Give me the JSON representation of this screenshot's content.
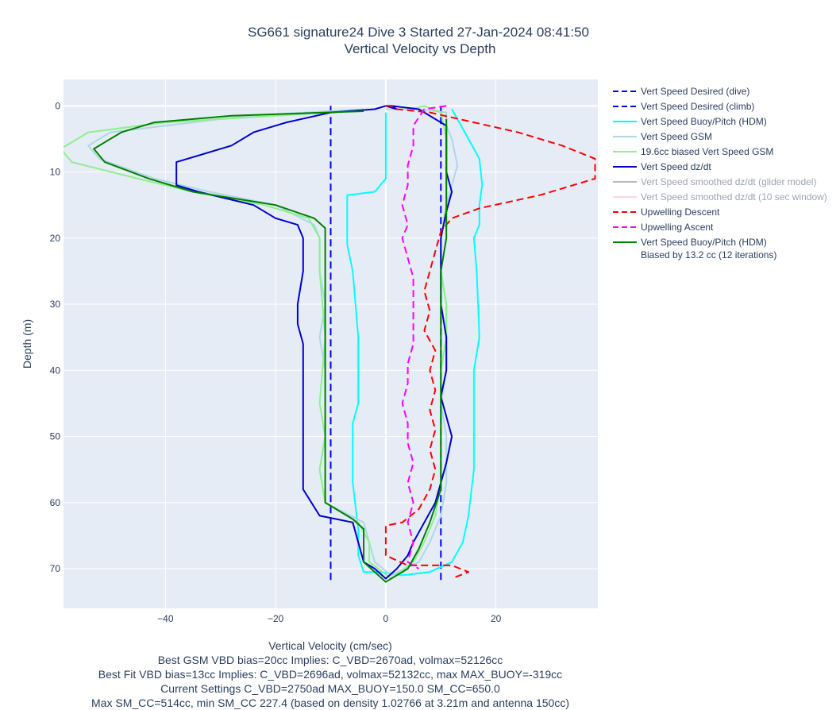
{
  "chart_data": {
    "type": "line",
    "title": "SG661 signature24 Dive 3 Started 27-Jan-2024 08:41:50",
    "subtitle": "Vertical Velocity vs Depth",
    "xlabel": "Vertical Velocity (cm/sec)",
    "ylabel": "Depth (m)",
    "xlim": [
      -58.5,
      38.5
    ],
    "ylim": [
      76,
      -4
    ],
    "y_reversed": true,
    "grid": true,
    "legend_position": "right",
    "x_ticks": [
      {
        "value": -40,
        "label": "−40"
      },
      {
        "value": -20,
        "label": "−20"
      },
      {
        "value": 0,
        "label": "0"
      },
      {
        "value": 20,
        "label": "20"
      }
    ],
    "y_ticks": [
      {
        "value": 0,
        "label": "0"
      },
      {
        "value": 10,
        "label": "10"
      },
      {
        "value": 20,
        "label": "20"
      },
      {
        "value": 30,
        "label": "30"
      },
      {
        "value": 40,
        "label": "40"
      },
      {
        "value": 50,
        "label": "50"
      },
      {
        "value": 60,
        "label": "60"
      },
      {
        "value": 70,
        "label": "70"
      }
    ],
    "series": [
      {
        "name": "Vert Speed Desired (dive)",
        "color": "#0000ff",
        "dash": "dash",
        "visible": true,
        "points": [
          [
            -10,
            0
          ],
          [
            -10,
            72
          ]
        ]
      },
      {
        "name": "Vert Speed Desired (climb)",
        "color": "#0000ff",
        "dash": "dash",
        "visible": true,
        "points": [
          [
            10,
            0
          ],
          [
            10,
            72
          ]
        ]
      },
      {
        "name": "Vert Speed Buoy/Pitch (HDM)",
        "color": "#00ffff",
        "dash": "solid",
        "visible": true,
        "points": [
          [
            0,
            1
          ],
          [
            0,
            11
          ],
          [
            -2,
            13
          ],
          [
            -7,
            13.5
          ],
          [
            -7,
            17
          ],
          [
            -7,
            21
          ],
          [
            -6,
            25
          ],
          [
            -5,
            35
          ],
          [
            -5,
            45
          ],
          [
            -6,
            48
          ],
          [
            -6,
            57
          ],
          [
            -5,
            64
          ],
          [
            -5,
            68
          ],
          [
            -4,
            70.5
          ],
          [
            -1,
            70.5
          ],
          [
            3,
            71
          ],
          [
            8,
            70.5
          ],
          [
            12,
            69
          ],
          [
            14,
            66
          ],
          [
            15,
            62
          ],
          [
            16,
            55
          ],
          [
            16,
            40
          ],
          [
            17,
            35
          ],
          [
            16.5,
            25
          ],
          [
            16,
            20
          ],
          [
            17,
            18
          ],
          [
            17,
            15
          ],
          [
            17.5,
            12
          ],
          [
            17,
            8
          ],
          [
            15,
            5
          ],
          [
            13,
            2
          ],
          [
            12,
            0.5
          ]
        ]
      },
      {
        "name": "Vert Speed GSM",
        "color": "#add8e6",
        "dash": "solid",
        "visible": true,
        "points": [
          [
            -4,
            0.5
          ],
          [
            -25,
            1.5
          ],
          [
            -50,
            4
          ],
          [
            -54,
            6
          ],
          [
            -52,
            8
          ],
          [
            -42,
            11
          ],
          [
            -32,
            13
          ],
          [
            -20,
            15
          ],
          [
            -13,
            18
          ],
          [
            -12,
            20
          ],
          [
            -12,
            25
          ],
          [
            -11,
            30
          ],
          [
            -12,
            35
          ],
          [
            -11,
            40
          ],
          [
            -11,
            45
          ],
          [
            -11,
            50
          ],
          [
            -12,
            55
          ],
          [
            -11,
            60
          ],
          [
            -4,
            63
          ],
          [
            -3,
            66
          ],
          [
            -2,
            69
          ],
          [
            1,
            71
          ],
          [
            6,
            69
          ],
          [
            8,
            66
          ],
          [
            10,
            62
          ],
          [
            11,
            57
          ],
          [
            11,
            50
          ],
          [
            10,
            45
          ],
          [
            11,
            40
          ],
          [
            11,
            35
          ],
          [
            11,
            30
          ],
          [
            10,
            25
          ],
          [
            10,
            20
          ],
          [
            11,
            15
          ],
          [
            12,
            12
          ],
          [
            13,
            9
          ],
          [
            12,
            5
          ],
          [
            11,
            3
          ],
          [
            11,
            1
          ],
          [
            6,
            0.5
          ],
          [
            0,
            0.5
          ]
        ]
      },
      {
        "name": "19.6cc biased Vert Speed GSM",
        "color": "#90ee90",
        "dash": "solid",
        "visible": true,
        "points": [
          [
            -4,
            0.7
          ],
          [
            -20,
            1.5
          ],
          [
            -40,
            2.5
          ],
          [
            -54,
            4
          ],
          [
            -59,
            6.5
          ],
          [
            -57,
            8.5
          ],
          [
            -45,
            11
          ],
          [
            -35,
            13
          ],
          [
            -22,
            15
          ],
          [
            -14,
            17
          ],
          [
            -12,
            20
          ],
          [
            -12,
            25
          ],
          [
            -11.5,
            30
          ],
          [
            -11,
            35
          ],
          [
            -11.5,
            40
          ],
          [
            -12,
            45
          ],
          [
            -11,
            50
          ],
          [
            -12,
            55
          ],
          [
            -11,
            60
          ],
          [
            -5,
            63
          ],
          [
            -3,
            66
          ],
          [
            -3,
            69
          ],
          [
            1,
            71.5
          ],
          [
            5,
            69
          ],
          [
            7,
            66
          ],
          [
            9,
            62
          ],
          [
            10,
            57
          ],
          [
            10,
            50
          ],
          [
            10,
            45
          ],
          [
            10,
            40
          ],
          [
            11,
            35
          ],
          [
            11,
            30
          ],
          [
            10,
            25
          ],
          [
            10,
            20
          ],
          [
            11,
            15
          ],
          [
            11,
            10
          ],
          [
            11,
            5
          ],
          [
            10,
            1
          ],
          [
            7,
            0
          ],
          [
            4,
            0.5
          ]
        ]
      },
      {
        "name": "Vert Speed dz/dt",
        "color": "#0000cd",
        "dash": "solid",
        "visible": true,
        "points": [
          [
            0,
            0
          ],
          [
            -2,
            0.5
          ],
          [
            -10,
            1
          ],
          [
            -18,
            2.5
          ],
          [
            -24,
            4
          ],
          [
            -28,
            6
          ],
          [
            -38,
            8.5
          ],
          [
            -38,
            12
          ],
          [
            -34,
            13
          ],
          [
            -24,
            15
          ],
          [
            -20,
            17
          ],
          [
            -16,
            18
          ],
          [
            -15,
            20
          ],
          [
            -15,
            25
          ],
          [
            -16,
            30
          ],
          [
            -16,
            33
          ],
          [
            -15,
            36
          ],
          [
            -15,
            40
          ],
          [
            -15,
            45
          ],
          [
            -15,
            50
          ],
          [
            -15,
            55
          ],
          [
            -15,
            58
          ],
          [
            -12,
            62
          ],
          [
            -6,
            63
          ],
          [
            -5,
            66
          ],
          [
            -4,
            69
          ],
          [
            -2,
            70
          ],
          [
            0,
            71.5
          ],
          [
            2,
            70
          ],
          [
            4,
            68
          ],
          [
            5,
            66
          ],
          [
            7,
            63
          ],
          [
            9,
            60
          ],
          [
            10,
            57
          ],
          [
            11,
            54
          ],
          [
            12,
            50
          ],
          [
            11,
            47
          ],
          [
            10,
            44
          ],
          [
            11,
            40
          ],
          [
            11,
            35
          ],
          [
            10,
            30
          ],
          [
            10,
            25
          ],
          [
            10,
            20
          ],
          [
            11,
            16
          ],
          [
            12,
            13
          ],
          [
            11,
            10
          ],
          [
            11,
            6
          ],
          [
            11,
            3
          ],
          [
            6,
            0.5
          ],
          [
            1,
            0
          ],
          [
            2,
            0.5
          ],
          [
            0,
            0
          ]
        ]
      },
      {
        "name": "Vert Speed smoothed dz/dt (glider model)",
        "color": "#808080",
        "dash": "solid",
        "visible": false,
        "points": []
      },
      {
        "name": "Vert Speed smoothed dz/dt (10 sec window)",
        "color": "#ffb6c1",
        "dash": "solid",
        "visible": false,
        "points": []
      },
      {
        "name": "Upwelling Descent",
        "color": "#ff0000",
        "dash": "dash",
        "visible": true,
        "points": [
          [
            0,
            0
          ],
          [
            1,
            0
          ],
          [
            2,
            0.5
          ],
          [
            8,
            1
          ],
          [
            16,
            2.5
          ],
          [
            24,
            4
          ],
          [
            32,
            6
          ],
          [
            38,
            8
          ],
          [
            38,
            11
          ],
          [
            28,
            13.5
          ],
          [
            17,
            15.5
          ],
          [
            12,
            17
          ],
          [
            10,
            19
          ],
          [
            9,
            22
          ],
          [
            8,
            25
          ],
          [
            7,
            28
          ],
          [
            8,
            31
          ],
          [
            7,
            34
          ],
          [
            9,
            37
          ],
          [
            8,
            40
          ],
          [
            9,
            43
          ],
          [
            8,
            46
          ],
          [
            9,
            49
          ],
          [
            8,
            52
          ],
          [
            9,
            55
          ],
          [
            8,
            58
          ],
          [
            6,
            61
          ],
          [
            3,
            63
          ],
          [
            0,
            63.5
          ],
          [
            0,
            68
          ],
          [
            4,
            69.5
          ],
          [
            12,
            69.5
          ],
          [
            15,
            70.5
          ],
          [
            12,
            71.5
          ]
        ]
      },
      {
        "name": "Upwelling Ascent",
        "color": "#ff00ff",
        "dash": "dash",
        "visible": true,
        "points": [
          [
            11,
            0
          ],
          [
            7,
            0.5
          ],
          [
            5,
            3
          ],
          [
            5,
            6
          ],
          [
            4,
            9
          ],
          [
            4,
            12
          ],
          [
            3,
            15
          ],
          [
            4,
            18
          ],
          [
            3,
            20
          ],
          [
            4,
            23
          ],
          [
            5,
            26
          ],
          [
            5,
            30
          ],
          [
            5,
            33
          ],
          [
            5,
            36
          ],
          [
            4,
            39
          ],
          [
            4,
            42
          ],
          [
            3,
            45
          ],
          [
            4,
            48
          ],
          [
            4,
            51
          ],
          [
            5,
            54
          ],
          [
            4,
            57
          ],
          [
            5,
            60
          ],
          [
            4,
            63
          ],
          [
            5,
            66
          ],
          [
            4,
            69
          ],
          [
            6,
            70
          ]
        ]
      },
      {
        "name": "Vert Speed Buoy/Pitch (HDM)\nBiased by 13.2 cc (12 iterations)",
        "color": "#008000",
        "dash": "solid",
        "visible": true,
        "points": [
          [
            -4,
            0.8
          ],
          [
            -28,
            1.5
          ],
          [
            -42,
            2.5
          ],
          [
            -48,
            4
          ],
          [
            -53,
            6.5
          ],
          [
            -51,
            8.5
          ],
          [
            -43,
            11
          ],
          [
            -35,
            13
          ],
          [
            -20,
            15
          ],
          [
            -13,
            17
          ],
          [
            -11,
            18.5
          ],
          [
            -11,
            25
          ],
          [
            -11,
            30
          ],
          [
            -11,
            35
          ],
          [
            -11,
            40
          ],
          [
            -11,
            45
          ],
          [
            -11,
            50
          ],
          [
            -11,
            55
          ],
          [
            -11,
            60
          ],
          [
            -6,
            62.5
          ],
          [
            -4,
            64
          ],
          [
            -4,
            69
          ],
          [
            0,
            72
          ],
          [
            4,
            70
          ],
          [
            6,
            67
          ],
          [
            8,
            63
          ],
          [
            10,
            58
          ],
          [
            10,
            50
          ],
          [
            10,
            45
          ],
          [
            10,
            40
          ],
          [
            10,
            35
          ],
          [
            10,
            30
          ],
          [
            10,
            25
          ],
          [
            11,
            20
          ],
          [
            11,
            15
          ],
          [
            11,
            10
          ],
          [
            11,
            6
          ],
          [
            11,
            2
          ]
        ]
      }
    ]
  },
  "notes": [
    "Best GSM VBD bias=20cc Implies: C_VBD=2670ad, volmax=52126cc",
    "Best Fit VBD bias=13cc Implies: C_VBD=2696ad, volmax=52132cc, max MAX_BUOY=-319cc",
    "Current Settings C_VBD=2750ad MAX_BUOY=150.0 SM_CC=650.0",
    "Max SM_CC=514cc, min SM_CC 227.4 (based on density 1.02766 at 3.21m and antenna 150cc)"
  ]
}
